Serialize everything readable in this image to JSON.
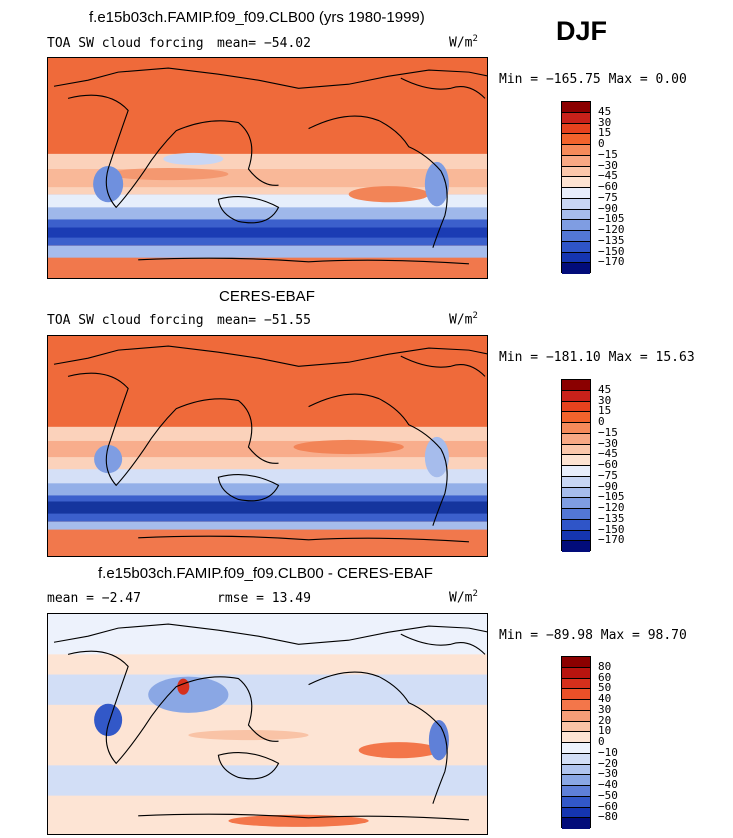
{
  "season": "DJF",
  "units": {
    "base": "W/m",
    "exp": "2"
  },
  "panels": [
    {
      "title": "f.e15b03ch.FAMIP.f09_f09.CLB00 (yrs 1980-1999)",
      "variable": "TOA SW cloud forcing",
      "stat1": "mean= −54.02",
      "minmax": "Min = −165.75 Max =   0.00",
      "colorbar": {
        "levels": [
          "45",
          "30",
          "15",
          "0",
          "−15",
          "−30",
          "−45",
          "−60",
          "−75",
          "−90",
          "−105",
          "−120",
          "−135",
          "−150",
          "−170"
        ],
        "colors": [
          "#8b0000",
          "#c8211a",
          "#e6421e",
          "#f2632c",
          "#f58a5a",
          "#f8a884",
          "#fbc7ab",
          "#fde3d2",
          "#e8eefb",
          "#c8d6f4",
          "#a6bcec",
          "#7f9de2",
          "#5377d6",
          "#2f55c8",
          "#1535b0",
          "#020c7a"
        ]
      }
    },
    {
      "title": "CERES-EBAF",
      "variable": "TOA SW cloud forcing",
      "stat1": "mean= −51.55",
      "minmax": "Min = −181.10 Max =  15.63",
      "colorbar": {
        "levels": [
          "45",
          "30",
          "15",
          "0",
          "−15",
          "−30",
          "−45",
          "−60",
          "−75",
          "−90",
          "−105",
          "−120",
          "−135",
          "−150",
          "−170"
        ],
        "colors": [
          "#8b0000",
          "#c8211a",
          "#e6421e",
          "#f2632c",
          "#f58a5a",
          "#f8a884",
          "#fbc7ab",
          "#fde3d2",
          "#e8eefb",
          "#c8d6f4",
          "#a6bcec",
          "#7f9de2",
          "#5377d6",
          "#2f55c8",
          "#1535b0",
          "#020c7a"
        ]
      }
    },
    {
      "title": "f.e15b03ch.FAMIP.f09_f09.CLB00 - CERES-EBAF",
      "stat1": "mean =   −2.47",
      "stat2": "rmse =   13.49",
      "minmax": "Min = −89.98 Max =  98.70",
      "colorbar": {
        "levels": [
          "80",
          "60",
          "50",
          "40",
          "30",
          "20",
          "10",
          "0",
          "−10",
          "−20",
          "−30",
          "−40",
          "−50",
          "−60",
          "−80"
        ],
        "colors": [
          "#8b0000",
          "#b8140f",
          "#d6301c",
          "#ea5028",
          "#f3764a",
          "#f69e78",
          "#f9c3a6",
          "#fde4d4",
          "#edf2fc",
          "#d2def6",
          "#b0c4ee",
          "#8aa7e4",
          "#5f80d8",
          "#3258c8",
          "#1535b0",
          "#020c7a"
        ]
      }
    }
  ]
}
